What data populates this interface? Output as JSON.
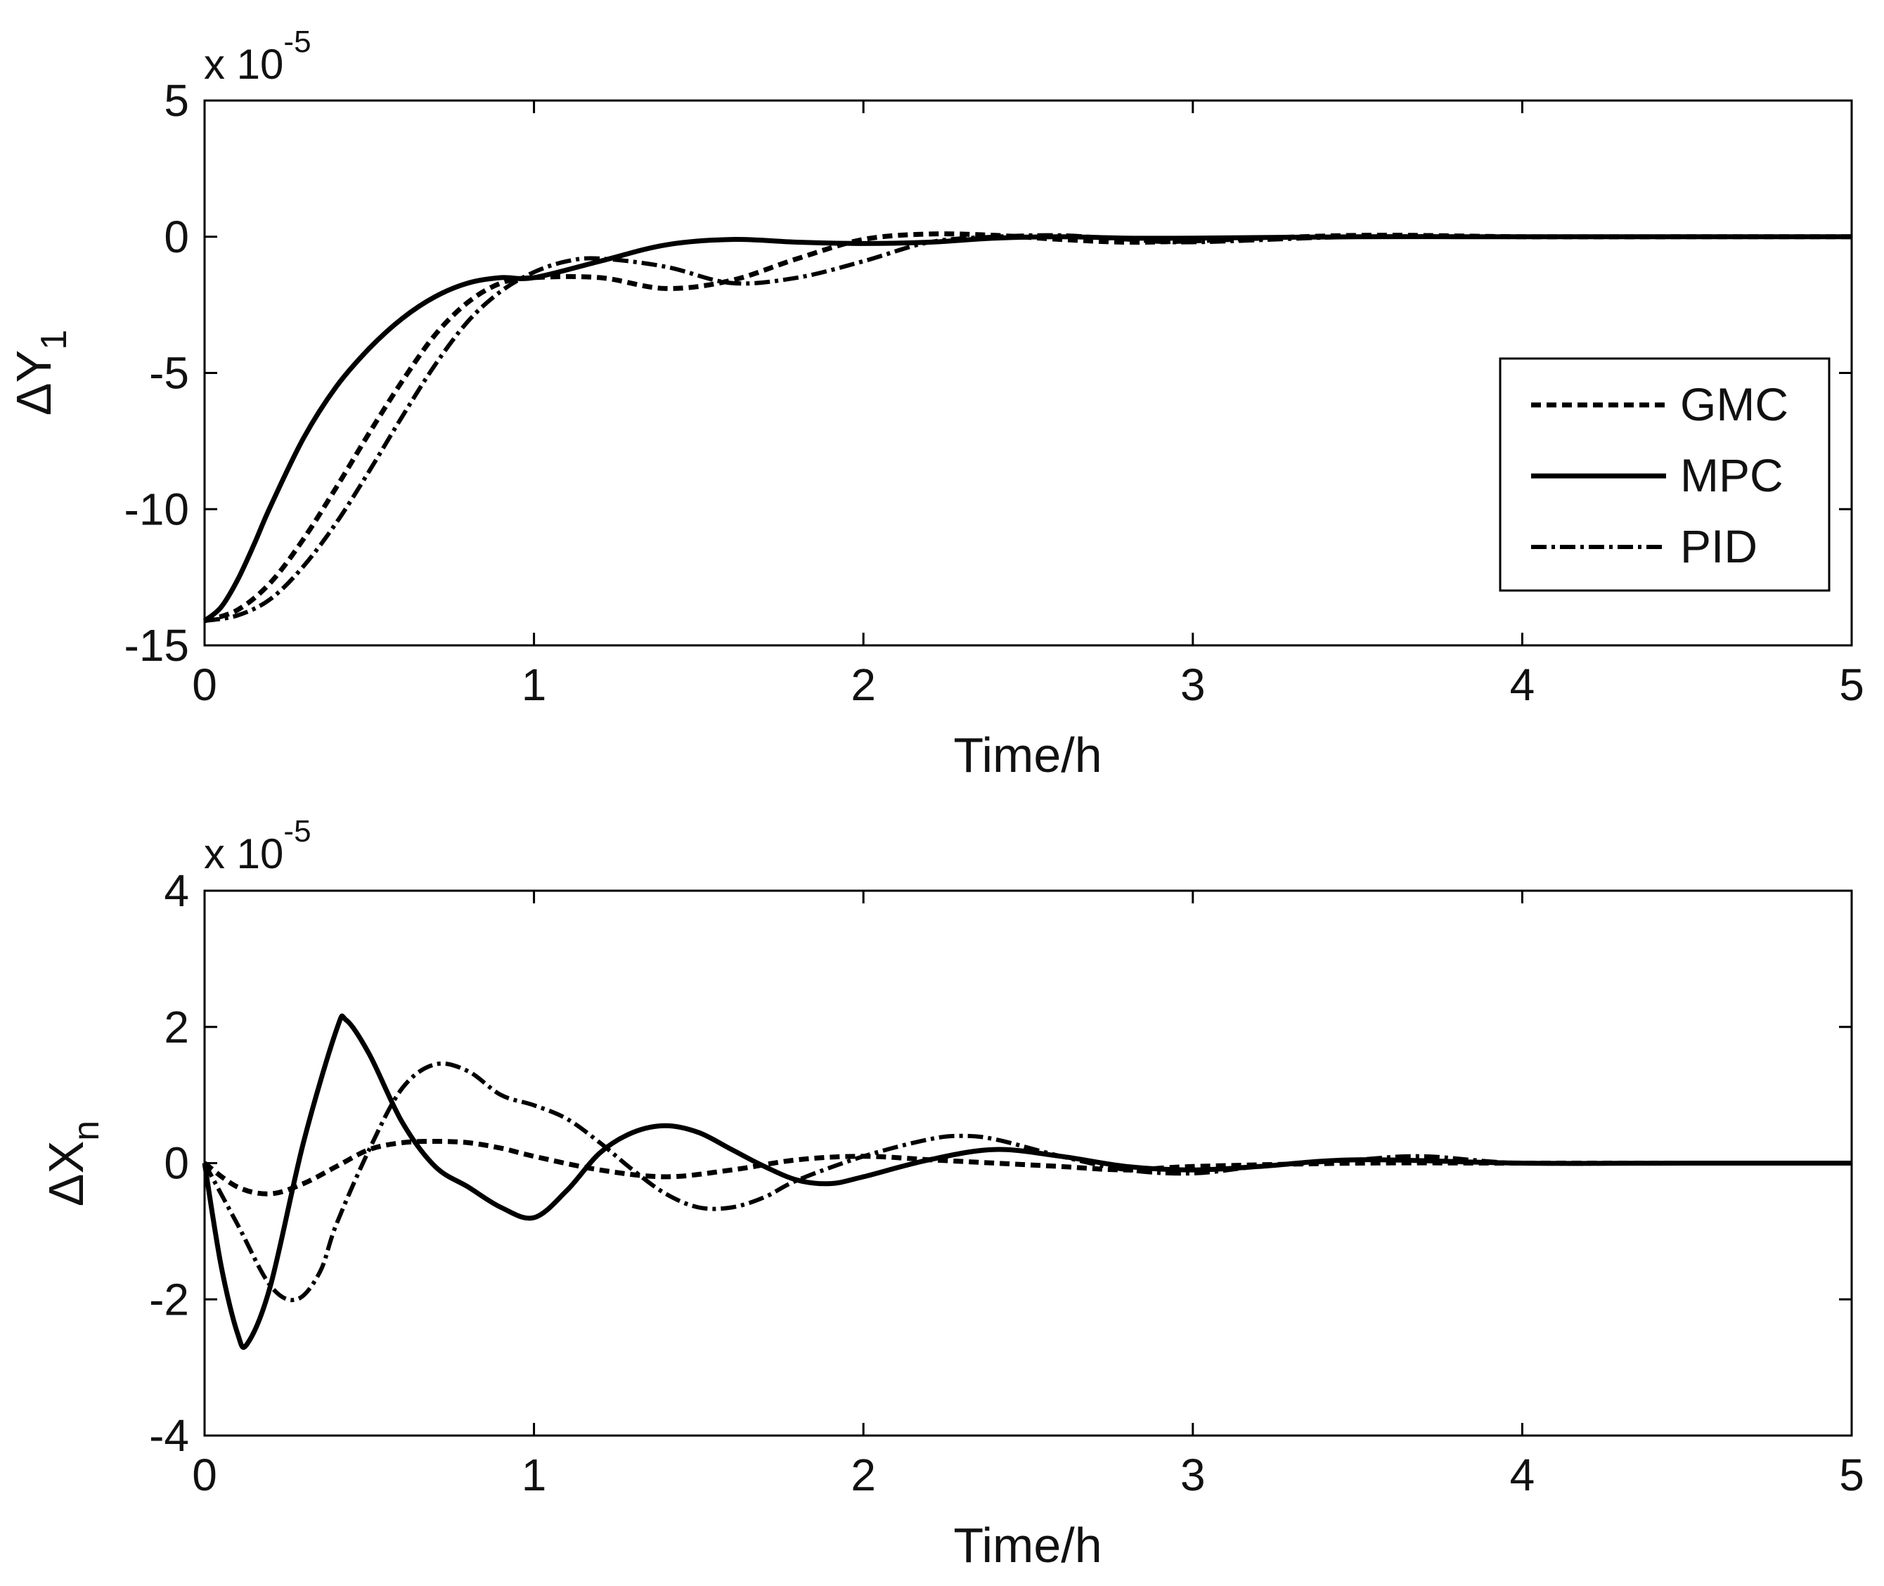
{
  "chart_data": [
    {
      "type": "line",
      "ylabel_main": "ΔY",
      "ylabel_sub": "1",
      "xlabel": "Time/h",
      "exponent_base": "x 10",
      "exponent_power": "-5",
      "xlim": [
        0,
        5
      ],
      "ylim": [
        -15,
        5
      ],
      "xticks": [
        0,
        1,
        2,
        3,
        4,
        5
      ],
      "xtick_labels": [
        "0",
        "1",
        "2",
        "3",
        "4",
        "5"
      ],
      "yticks": [
        -15,
        -10,
        -5,
        0,
        5
      ],
      "ytick_labels": [
        "-15",
        "-10",
        "-5",
        "0",
        "5"
      ],
      "legend": {
        "position": "right",
        "entries": [
          "GMC",
          "MPC",
          "PID"
        ]
      },
      "series": [
        {
          "name": "GMC",
          "style": "dashed",
          "x": [
            0,
            0.1,
            0.2,
            0.3,
            0.4,
            0.5,
            0.6,
            0.7,
            0.8,
            0.9,
            1.0,
            1.2,
            1.4,
            1.6,
            1.8,
            2.0,
            2.2,
            2.4,
            2.6,
            2.8,
            3.0,
            3.5,
            4.0,
            4.5,
            5.0
          ],
          "values": [
            -14.1,
            -13.7,
            -12.7,
            -11.1,
            -9.2,
            -7.2,
            -5.3,
            -3.6,
            -2.4,
            -1.7,
            -1.5,
            -1.5,
            -1.9,
            -1.6,
            -0.8,
            -0.1,
            0.1,
            0.05,
            -0.1,
            -0.2,
            -0.15,
            0.05,
            0.0,
            0.0,
            0.0
          ]
        },
        {
          "name": "MPC",
          "style": "solid",
          "x": [
            0,
            0.05,
            0.1,
            0.15,
            0.2,
            0.3,
            0.4,
            0.5,
            0.6,
            0.7,
            0.8,
            0.9,
            1.0,
            1.2,
            1.4,
            1.6,
            1.8,
            2.0,
            2.2,
            2.4,
            2.6,
            2.8,
            3.0,
            3.5,
            4.0,
            4.5,
            5.0
          ],
          "values": [
            -14.1,
            -13.6,
            -12.6,
            -11.3,
            -9.9,
            -7.4,
            -5.5,
            -4.1,
            -3.0,
            -2.2,
            -1.7,
            -1.5,
            -1.5,
            -0.9,
            -0.3,
            -0.1,
            -0.2,
            -0.25,
            -0.2,
            -0.05,
            0.0,
            -0.05,
            -0.05,
            0.0,
            0.0,
            0.0,
            0.0
          ]
        },
        {
          "name": "PID",
          "style": "dashdot",
          "x": [
            0,
            0.1,
            0.2,
            0.3,
            0.4,
            0.5,
            0.6,
            0.7,
            0.8,
            0.9,
            1.0,
            1.1,
            1.2,
            1.4,
            1.6,
            1.8,
            2.0,
            2.2,
            2.4,
            2.6,
            2.8,
            3.0,
            3.5,
            4.0,
            4.5,
            5.0
          ],
          "values": [
            -14.1,
            -13.9,
            -13.3,
            -12.1,
            -10.5,
            -8.6,
            -6.6,
            -4.7,
            -3.1,
            -2.0,
            -1.3,
            -0.9,
            -0.8,
            -1.1,
            -1.7,
            -1.5,
            -0.9,
            -0.2,
            0.0,
            0.05,
            -0.1,
            -0.2,
            0.0,
            0.0,
            0.0,
            0.0
          ]
        }
      ]
    },
    {
      "type": "line",
      "ylabel_main": "ΔX",
      "ylabel_sub": "n",
      "xlabel": "Time/h",
      "exponent_base": "x 10",
      "exponent_power": "-5",
      "xlim": [
        0,
        5
      ],
      "ylim": [
        -4,
        4
      ],
      "xticks": [
        0,
        1,
        2,
        3,
        4,
        5
      ],
      "xtick_labels": [
        "0",
        "1",
        "2",
        "3",
        "4",
        "5"
      ],
      "yticks": [
        -4,
        -2,
        0,
        2,
        4
      ],
      "ytick_labels": [
        "-4",
        "-2",
        "0",
        "2",
        "4"
      ],
      "series": [
        {
          "name": "GMC",
          "style": "dashed",
          "x": [
            0,
            0.1,
            0.2,
            0.3,
            0.4,
            0.5,
            0.6,
            0.7,
            0.8,
            0.9,
            1.0,
            1.2,
            1.4,
            1.6,
            1.8,
            2.0,
            2.2,
            2.4,
            2.6,
            2.8,
            3.0,
            3.5,
            4.0,
            4.5,
            5.0
          ],
          "values": [
            0,
            -0.35,
            -0.45,
            -0.3,
            -0.05,
            0.2,
            0.3,
            0.32,
            0.3,
            0.22,
            0.1,
            -0.1,
            -0.2,
            -0.1,
            0.05,
            0.1,
            0.05,
            0.0,
            -0.05,
            -0.1,
            -0.05,
            0.0,
            0.0,
            0.0,
            0.0
          ]
        },
        {
          "name": "MPC",
          "style": "solid",
          "x": [
            0,
            0.05,
            0.1,
            0.13,
            0.2,
            0.3,
            0.4,
            0.43,
            0.5,
            0.6,
            0.7,
            0.8,
            0.9,
            1.0,
            1.1,
            1.2,
            1.3,
            1.4,
            1.5,
            1.6,
            1.7,
            1.8,
            1.9,
            2.0,
            2.2,
            2.4,
            2.6,
            2.8,
            3.0,
            3.2,
            3.5,
            4.0,
            4.5,
            5.0
          ],
          "values": [
            0,
            -1.5,
            -2.5,
            -2.65,
            -1.8,
            0.3,
            1.95,
            2.1,
            1.6,
            0.6,
            -0.05,
            -0.35,
            -0.65,
            -0.8,
            -0.4,
            0.15,
            0.45,
            0.55,
            0.45,
            0.2,
            -0.05,
            -0.25,
            -0.3,
            -0.2,
            0.05,
            0.2,
            0.1,
            -0.05,
            -0.1,
            -0.05,
            0.05,
            0.0,
            0.0,
            0.0
          ]
        },
        {
          "name": "PID",
          "style": "dashdot",
          "x": [
            0,
            0.1,
            0.2,
            0.28,
            0.35,
            0.4,
            0.5,
            0.6,
            0.7,
            0.8,
            0.9,
            1.0,
            1.1,
            1.2,
            1.3,
            1.4,
            1.5,
            1.6,
            1.7,
            1.8,
            2.0,
            2.2,
            2.3,
            2.4,
            2.6,
            2.8,
            3.0,
            3.2,
            3.5,
            3.7,
            4.0,
            4.5,
            5.0
          ],
          "values": [
            0,
            -0.9,
            -1.8,
            -2.0,
            -1.6,
            -0.9,
            0.2,
            1.1,
            1.45,
            1.35,
            1.0,
            0.85,
            0.65,
            0.3,
            -0.1,
            -0.45,
            -0.65,
            -0.65,
            -0.5,
            -0.25,
            0.1,
            0.35,
            0.4,
            0.35,
            0.1,
            -0.1,
            -0.15,
            -0.05,
            0.05,
            0.1,
            0.0,
            0.0,
            0.0
          ]
        }
      ]
    }
  ]
}
